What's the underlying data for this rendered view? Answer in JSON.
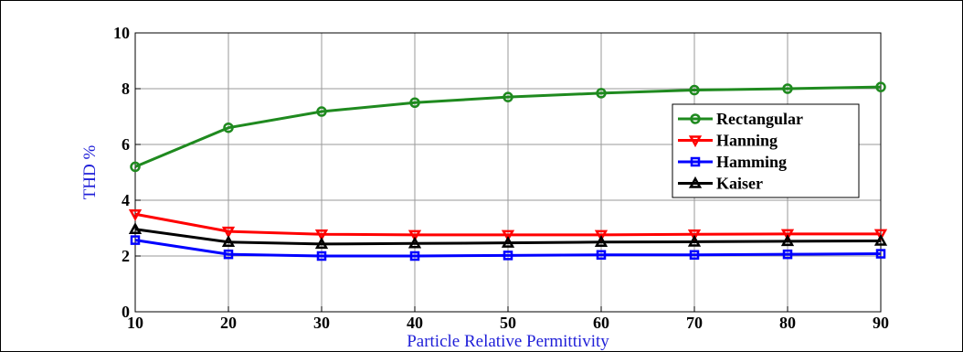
{
  "chart_data": {
    "type": "line",
    "xlabel": "Particle Relative Permittivity",
    "ylabel": "THD %",
    "x": [
      10,
      20,
      30,
      40,
      50,
      60,
      70,
      80,
      90
    ],
    "xticks": [
      "10",
      "20",
      "30",
      "40",
      "50",
      "60",
      "70",
      "80",
      "90"
    ],
    "yticks": [
      "0",
      "2",
      "4",
      "6",
      "8",
      "10"
    ],
    "xlim": [
      10,
      90
    ],
    "ylim": [
      0,
      10
    ],
    "grid": true,
    "legend_position": "right",
    "series": [
      {
        "name": "Rectangular",
        "color": "#1f8a1f",
        "marker": "circle",
        "values": [
          5.2,
          6.6,
          7.18,
          7.5,
          7.7,
          7.84,
          7.95,
          8.0,
          8.06
        ]
      },
      {
        "name": "Hanning",
        "color": "#ff0000",
        "marker": "triangle-down",
        "values": [
          3.5,
          2.88,
          2.78,
          2.76,
          2.76,
          2.76,
          2.78,
          2.79,
          2.79
        ]
      },
      {
        "name": "Hamming",
        "color": "#0000ff",
        "marker": "square",
        "values": [
          2.57,
          2.06,
          2.0,
          2.0,
          2.02,
          2.04,
          2.04,
          2.06,
          2.08
        ]
      },
      {
        "name": "Kaiser",
        "color": "#000000",
        "marker": "triangle-up",
        "values": [
          2.96,
          2.5,
          2.43,
          2.45,
          2.47,
          2.5,
          2.51,
          2.53,
          2.54
        ]
      }
    ]
  }
}
